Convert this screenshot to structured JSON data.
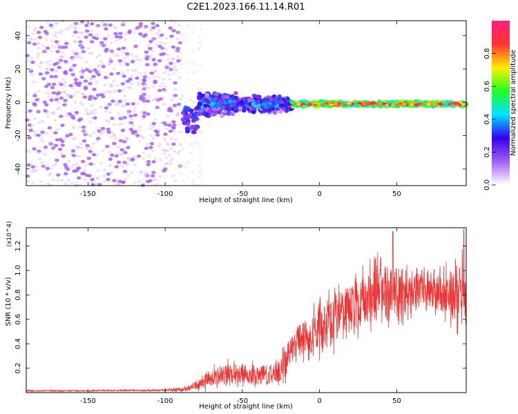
{
  "title": "C2E1.2023.166.11.14.R01",
  "colors": {
    "snr_line": "#ee3333",
    "weak_scatter": "#d9c6f2",
    "medium_scatter": "#8a3ff0",
    "strong_scatter": "#5a00e0"
  },
  "chart_data": [
    {
      "type": "heatmap",
      "name": "spectrogram",
      "xlabel": "Height of straight line (km)",
      "ylabel": "Frequency (Hz)",
      "xlim": [
        -190,
        95
      ],
      "ylim": [
        -50,
        49
      ],
      "xticks": [
        -150,
        -100,
        -50,
        0,
        50
      ],
      "yticks": [
        -40,
        -20,
        0,
        20,
        40
      ],
      "ytick_labels": [
        "-40",
        "-20",
        "0",
        "20",
        "40"
      ],
      "colorbar": {
        "label": "Normalized spectral amplitude",
        "range": [
          0.0,
          1.0
        ],
        "ticks": [
          0.0,
          0.2,
          0.4,
          0.6,
          0.8
        ],
        "tick_labels": [
          "0.0",
          "0.2",
          "0.4",
          "0.6",
          "0.8"
        ],
        "colormap": [
          "#ffffff",
          "#a25ff0",
          "#3300ee",
          "#00e5ff",
          "#22ff22",
          "#ffee00",
          "#ff3333",
          "#ff1f7a"
        ]
      },
      "regions": [
        {
          "x_range": [
            -190,
            -90
          ],
          "freq_range": [
            -50,
            49
          ],
          "amplitude": [
            0.02,
            0.12
          ],
          "description": "broadband noise"
        },
        {
          "x_range": [
            -90,
            -78
          ],
          "freq_range": [
            -18,
            -3
          ],
          "amplitude": [
            0.15,
            0.35
          ]
        },
        {
          "x_range": [
            -78,
            -18
          ],
          "freq_center": -1,
          "freq_spread": 8,
          "amplitude": [
            0.15,
            0.45
          ]
        },
        {
          "x_range": [
            -18,
            95
          ],
          "freq_center": -1,
          "freq_spread": 2,
          "amplitude": [
            0.7,
            0.95
          ]
        }
      ]
    },
    {
      "type": "line",
      "name": "snr",
      "xlabel": "Height of straight line (km)",
      "ylabel": "SNR (10 * v/v)",
      "y_scale_label": "(x10^4)",
      "xlim": [
        -190,
        95
      ],
      "ylim": [
        0,
        1.35
      ],
      "xticks": [
        -150,
        -100,
        -50,
        0,
        50
      ],
      "yticks": [
        0.2,
        0.4,
        0.6,
        0.8,
        1.0,
        1.2
      ],
      "ytick_labels": [
        "0.2",
        "0.4",
        "0.6",
        "0.8",
        "1.0",
        "1.2"
      ],
      "series": [
        {
          "name": "SNR",
          "x": [
            -190,
            -150,
            -100,
            -85,
            -78,
            -70,
            -60,
            -50,
            -40,
            -30,
            -25,
            -20,
            -15,
            -10,
            -5,
            0,
            10,
            20,
            30,
            40,
            50,
            60,
            70,
            80,
            90,
            95
          ],
          "y": [
            0.015,
            0.015,
            0.02,
            0.03,
            0.08,
            0.12,
            0.15,
            0.16,
            0.14,
            0.15,
            0.18,
            0.3,
            0.42,
            0.45,
            0.48,
            0.5,
            0.6,
            0.68,
            0.75,
            0.82,
            0.82,
            0.85,
            0.83,
            0.8,
            0.82,
            0.85
          ],
          "noise_amplitude": [
            0.005,
            0.005,
            0.008,
            0.02,
            0.05,
            0.07,
            0.08,
            0.08,
            0.08,
            0.08,
            0.1,
            0.12,
            0.12,
            0.13,
            0.15,
            0.18,
            0.18,
            0.2,
            0.2,
            0.22,
            0.2,
            0.15,
            0.12,
            0.15,
            0.25,
            0.3
          ],
          "annotation_peaks": [
            {
              "x": 47.5,
              "y": 1.32
            },
            {
              "x": 93.5,
              "y": 1.34
            }
          ]
        }
      ]
    }
  ]
}
